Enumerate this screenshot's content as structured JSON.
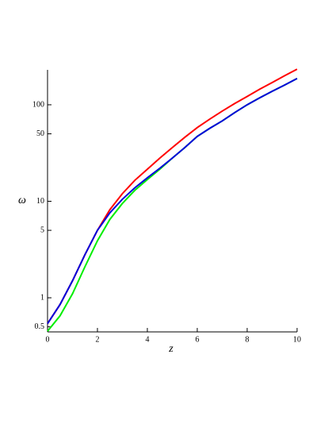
{
  "chart_data": {
    "type": "line",
    "x_label": "z",
    "y_label": "ω",
    "log_y": true,
    "x": [
      0,
      0.5,
      1,
      1.5,
      2,
      2.5,
      3,
      3.5,
      4,
      4.5,
      5,
      5.5,
      6,
      6.5,
      7,
      7.5,
      8,
      8.5,
      9,
      9.5,
      10
    ],
    "series": [
      {
        "color": "#ff0000",
        "values": [
          0.54,
          0.85,
          1.5,
          2.8,
          5.0,
          8.2,
          12,
          16.5,
          21.5,
          28,
          36,
          46,
          58,
          71,
          86,
          103,
          122,
          145,
          170,
          200,
          234
        ]
      },
      {
        "color": "#00ee00",
        "values": [
          0.45,
          0.65,
          1.1,
          2.1,
          3.9,
          6.5,
          9.5,
          13,
          16.8,
          21.5,
          28,
          36,
          47,
          57,
          68,
          83,
          100,
          118,
          138,
          160,
          187
        ]
      },
      {
        "color": "#0000dd",
        "values": [
          0.54,
          0.85,
          1.5,
          2.8,
          5.0,
          7.6,
          10.5,
          13.8,
          17.5,
          22,
          28,
          36,
          47,
          57,
          68,
          83,
          100,
          118,
          138,
          160,
          187
        ]
      }
    ],
    "xlim": [
      0,
      10
    ],
    "xticks": [
      0,
      2,
      4,
      6,
      8,
      10
    ],
    "ylim": [
      0.443,
      230
    ],
    "yticks": [
      0.5,
      1,
      5,
      10,
      50,
      100
    ]
  }
}
